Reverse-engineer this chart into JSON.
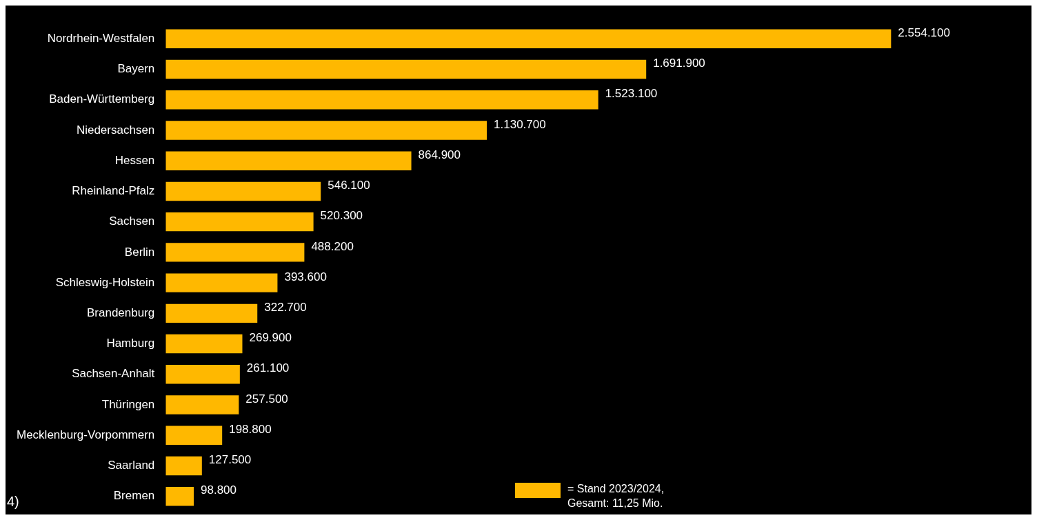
{
  "chart_data": {
    "type": "bar",
    "orientation": "horizontal",
    "categories": [
      "Nordrhein-Westfalen",
      "Bayern",
      "Baden-Württemberg",
      "Niedersachsen",
      "Hessen",
      "Rheinland-Pfalz",
      "Sachsen",
      "Berlin",
      "Schleswig-Holstein",
      "Brandenburg",
      "Hamburg",
      "Sachsen-Anhalt",
      "Thüringen",
      "Mecklenburg-Vorpommern",
      "Saarland",
      "Bremen"
    ],
    "series": [
      {
        "name": "= Stand 2023/2024, Gesamt: 11,25 Mio.",
        "color": "#ffb800",
        "values": [
          2554100,
          1691900,
          1523100,
          1130700,
          864900,
          546100,
          520300,
          488200,
          393600,
          322700,
          269900,
          261100,
          257500,
          198800,
          127500,
          98800
        ],
        "value_labels": [
          "2.554.100",
          "1.691.900",
          "1.523.100",
          "1.130.700",
          "864.900",
          "546.100",
          "520.300",
          "488.200",
          "393.600",
          "322.700",
          "269.900",
          "261.100",
          "257.500",
          "198.800",
          "127.500",
          "98.800"
        ]
      }
    ],
    "legend": "bottom",
    "tick_labels": "y",
    "annotations": [
      "4)"
    ]
  }
}
